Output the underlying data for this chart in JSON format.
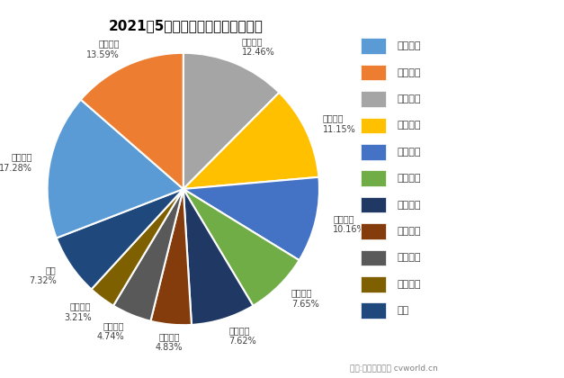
{
  "title": "2021年5月柴油机市场前十企业份额",
  "ordered_labels": [
    "安徽全柴",
    "一汽解放",
    "福田汽车",
    "东风股份",
    "江铃汽车",
    "长城汽车",
    "上汽动力",
    "江淮汽车",
    "其他",
    "玉柴集团",
    "云内动力"
  ],
  "ordered_values": [
    12.46,
    11.15,
    10.16,
    7.65,
    7.62,
    4.83,
    4.74,
    3.21,
    7.32,
    17.28,
    13.59
  ],
  "ordered_colors": [
    "#A5A5A5",
    "#FFC000",
    "#4472C4",
    "#70AD47",
    "#1F3864",
    "#843C0C",
    "#595959",
    "#7F6000",
    "#1F497D",
    "#5B9BD5",
    "#ED7D31"
  ],
  "legend_labels": [
    "玉柴集团",
    "云内动力",
    "安徽全柴",
    "一汽解放",
    "福田汽车",
    "东风股份",
    "江铃汽车",
    "长城汽车",
    "上汽动力",
    "江淮汽车",
    "其他"
  ],
  "legend_colors": [
    "#5B9BD5",
    "#ED7D31",
    "#A5A5A5",
    "#FFC000",
    "#4472C4",
    "#70AD47",
    "#1F3864",
    "#843C0C",
    "#595959",
    "#7F6000",
    "#1F497D"
  ],
  "footer": "制图:第一商用车网 cvworld.cn",
  "label_text_color": "#404040",
  "outside_labels": [
    "安徽全柴",
    "一汽解放",
    "福田汽车",
    "东风股份",
    "江铃汽车",
    "长城汽车",
    "上汽动力",
    "江淮汽车",
    "其他"
  ],
  "inside_labels": [
    "玉柴集团",
    "云内动力"
  ]
}
